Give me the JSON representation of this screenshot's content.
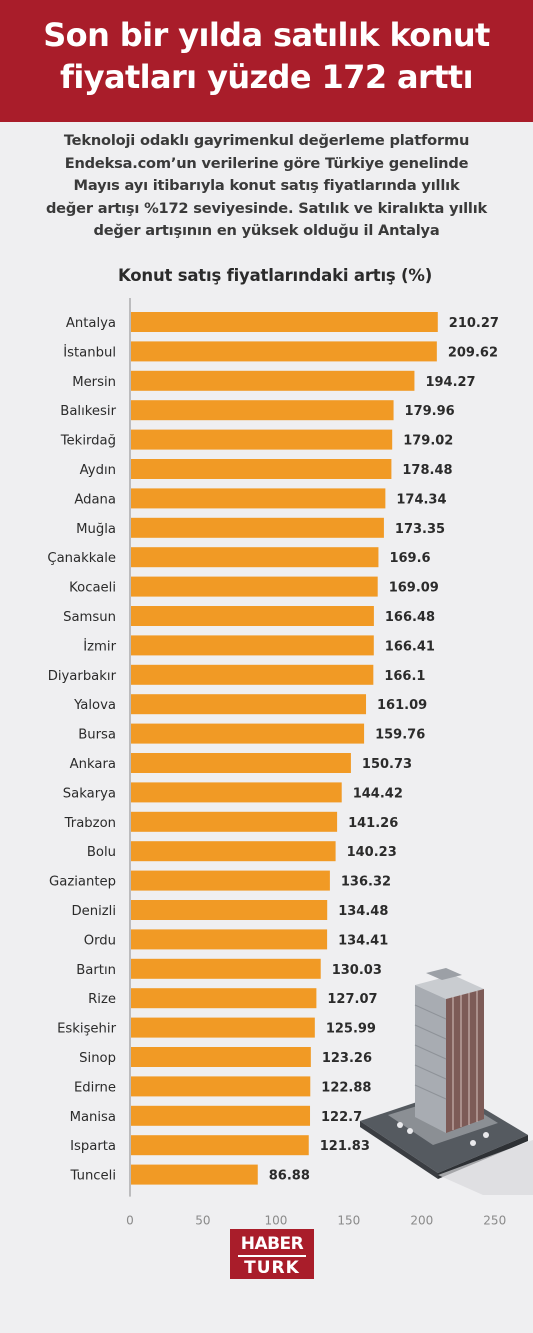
{
  "headline": {
    "line1": "Son bir yılda satılık konut",
    "line2": "fiyatları yüzde 172 arttı"
  },
  "intro": {
    "line1": "Teknoloji odaklı gayrimenkul değerleme platformu",
    "line2": "Endeksa.com’un verilerine göre Türkiye genelinde",
    "line3": "Mayıs ayı itibarıyla konut satış fiyatlarında yıllık",
    "line4": "değer artışı %172 seviyesinde. Satılık ve kiralıkta yıllık",
    "line5": "değer artışının en yüksek olduğu il Antalya"
  },
  "logo": {
    "line1": "HABER",
    "line2": "TURK"
  },
  "colors": {
    "header": "#a91d2a",
    "bar": "#f19a25",
    "background": "#efeff1",
    "text": "#2b2b2b",
    "axis": "#8a8a8a"
  },
  "chart_data": {
    "type": "bar",
    "orientation": "horizontal",
    "title": "Konut satış fiyatlarındaki artış (%)",
    "categories": [
      "Antalya",
      "İstanbul",
      "Mersin",
      "Balıkesir",
      "Tekirdağ",
      "Aydın",
      "Adana",
      "Muğla",
      "Çanakkale",
      "Kocaeli",
      "Samsun",
      "İzmir",
      "Diyarbakır",
      "Yalova",
      "Bursa",
      "Ankara",
      "Sakarya",
      "Trabzon",
      "Bolu",
      "Gaziantep",
      "Denizli",
      "Ordu",
      "Bartın",
      "Rize",
      "Eskişehir",
      "Sinop",
      "Edirne",
      "Manisa",
      "Isparta",
      "Tunceli"
    ],
    "values": [
      210.27,
      209.62,
      194.27,
      179.96,
      179.02,
      178.48,
      174.34,
      173.35,
      169.6,
      169.09,
      166.48,
      166.41,
      166.1,
      161.09,
      159.76,
      150.73,
      144.42,
      141.26,
      140.23,
      136.32,
      134.48,
      134.41,
      130.03,
      127.07,
      125.99,
      123.26,
      122.88,
      122.7,
      121.83,
      86.88
    ],
    "value_labels": [
      "210.27",
      "209.62",
      "194.27",
      "179.96",
      "179.02",
      "178.48",
      "174.34",
      "173.35",
      "169.6",
      "169.09",
      "166.48",
      "166.41",
      "166.1",
      "161.09",
      "159.76",
      "150.73",
      "144.42",
      "141.26",
      "140.23",
      "136.32",
      "134.48",
      "134.41",
      "130.03",
      "127.07",
      "125.99",
      "123.26",
      "122.88",
      "122.7",
      "121.83",
      "86.88"
    ],
    "xlim": [
      0,
      250
    ],
    "xticks": [
      "0",
      "50",
      "100",
      "150",
      "200",
      "250"
    ],
    "grid": false,
    "legend": "none"
  }
}
